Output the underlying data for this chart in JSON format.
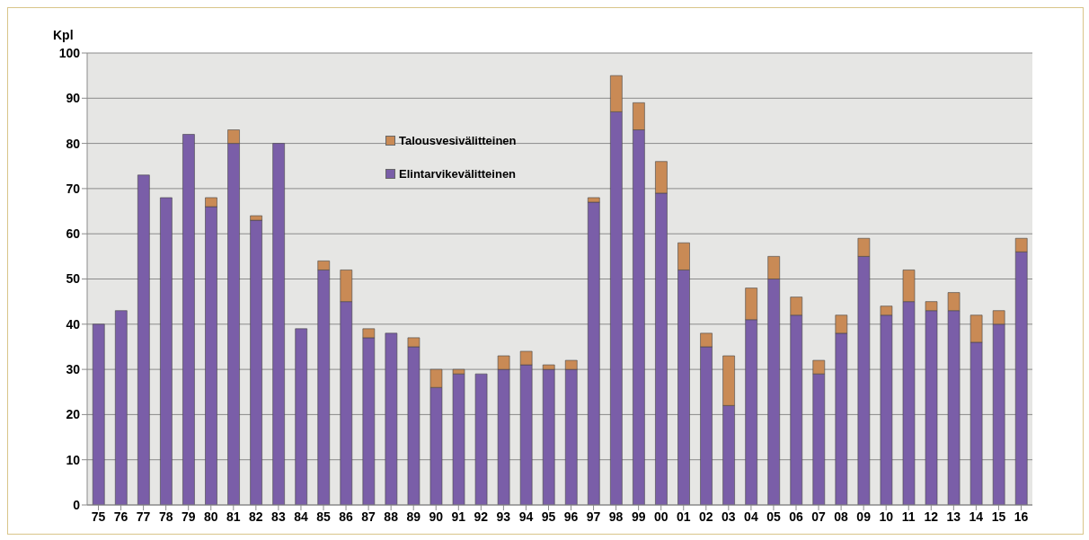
{
  "chart_data": {
    "type": "bar",
    "ylabel": "Kpl",
    "stacked": true,
    "categories": [
      "75",
      "76",
      "77",
      "78",
      "79",
      "80",
      "81",
      "82",
      "83",
      "84",
      "85",
      "86",
      "87",
      "88",
      "89",
      "90",
      "91",
      "92",
      "93",
      "94",
      "95",
      "96",
      "97",
      "98",
      "99",
      "00",
      "01",
      "02",
      "03",
      "04",
      "05",
      "06",
      "07",
      "08",
      "09",
      "10",
      "11",
      "12",
      "13",
      "14",
      "15",
      "16"
    ],
    "series": [
      {
        "name": "Elintarvikevälitteinen",
        "color": "#7a5ea8",
        "values": [
          40,
          43,
          73,
          68,
          82,
          66,
          80,
          63,
          80,
          39,
          52,
          45,
          37,
          38,
          35,
          26,
          29,
          29,
          30,
          31,
          30,
          30,
          67,
          87,
          83,
          69,
          52,
          35,
          22,
          41,
          50,
          42,
          29,
          38,
          55,
          42,
          45,
          43,
          43,
          36,
          40,
          56
        ]
      },
      {
        "name": "Talousvesivälitteinen",
        "color": "#c98a55",
        "values": [
          0,
          0,
          0,
          0,
          0,
          2,
          3,
          1,
          0,
          0,
          2,
          7,
          2,
          0,
          2,
          4,
          1,
          0,
          3,
          3,
          1,
          2,
          1,
          8,
          6,
          7,
          6,
          3,
          11,
          7,
          5,
          4,
          3,
          4,
          4,
          2,
          7,
          2,
          4,
          6,
          3,
          3
        ]
      }
    ],
    "ylim": [
      0,
      100
    ],
    "yticks": [
      0,
      10,
      20,
      30,
      40,
      50,
      60,
      70,
      80,
      90,
      100
    ],
    "grid": "y",
    "legend": "top"
  }
}
